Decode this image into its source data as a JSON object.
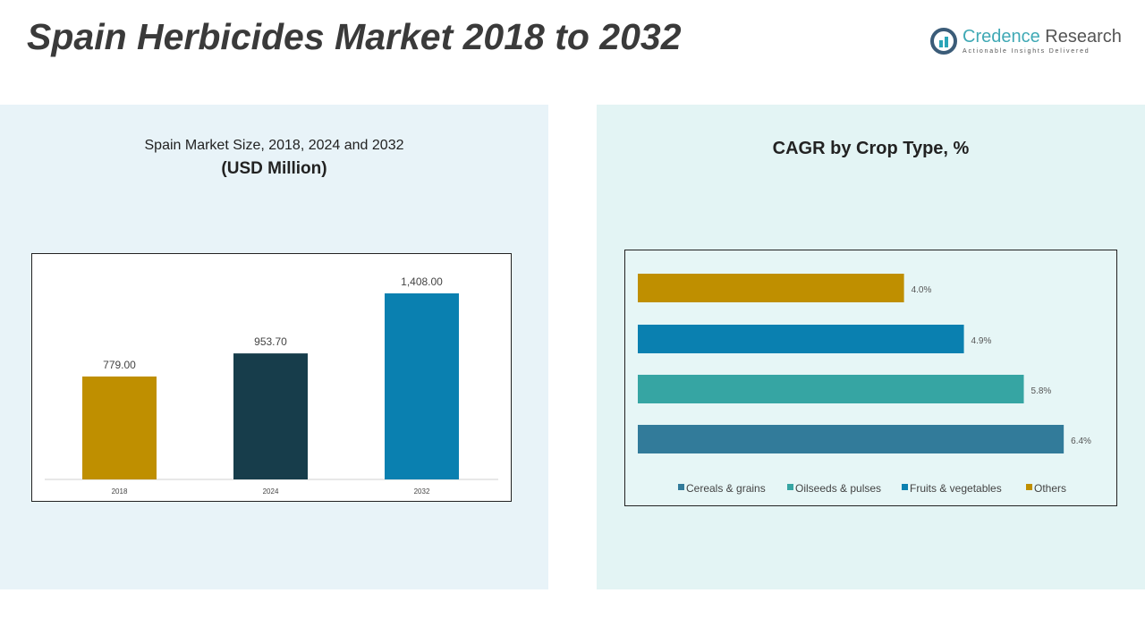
{
  "title": "Spain Herbicides Market 2018 to 2032",
  "logo": {
    "name_a": "Credence",
    "name_b": " Research",
    "tagline": "Actionable Insights Delivered"
  },
  "colors": {
    "gold": "#bf8f00",
    "navy": "#173d4b",
    "blue": "#0a80b0",
    "teal": "#36a5a3",
    "steel": "#327b9a"
  },
  "chart_data": [
    {
      "type": "bar",
      "title": "Spain Market Size, 2018, 2024 and 2032",
      "subtitle": "(USD Million)",
      "categories": [
        "2018",
        "2024",
        "2032"
      ],
      "values": [
        779.0,
        953.7,
        1408.0
      ],
      "labels": [
        "779.00",
        "953.70",
        "1,408.00"
      ],
      "ylim": [
        0,
        1408
      ]
    },
    {
      "type": "bar",
      "orientation": "horizontal",
      "title": "CAGR by Crop Type, %",
      "categories": [
        "Others",
        "Fruits & vegetables",
        "Oilseeds & pulses",
        "Cereals & grains"
      ],
      "values": [
        4.0,
        4.9,
        5.8,
        6.4
      ],
      "labels": [
        "4.0%",
        "4.9%",
        "5.8%",
        "6.4%"
      ],
      "legend": [
        "Cereals & grains",
        "Oilseeds & pulses",
        "Fruits & vegetables",
        "Others"
      ],
      "legend_position": "bottom"
    }
  ]
}
